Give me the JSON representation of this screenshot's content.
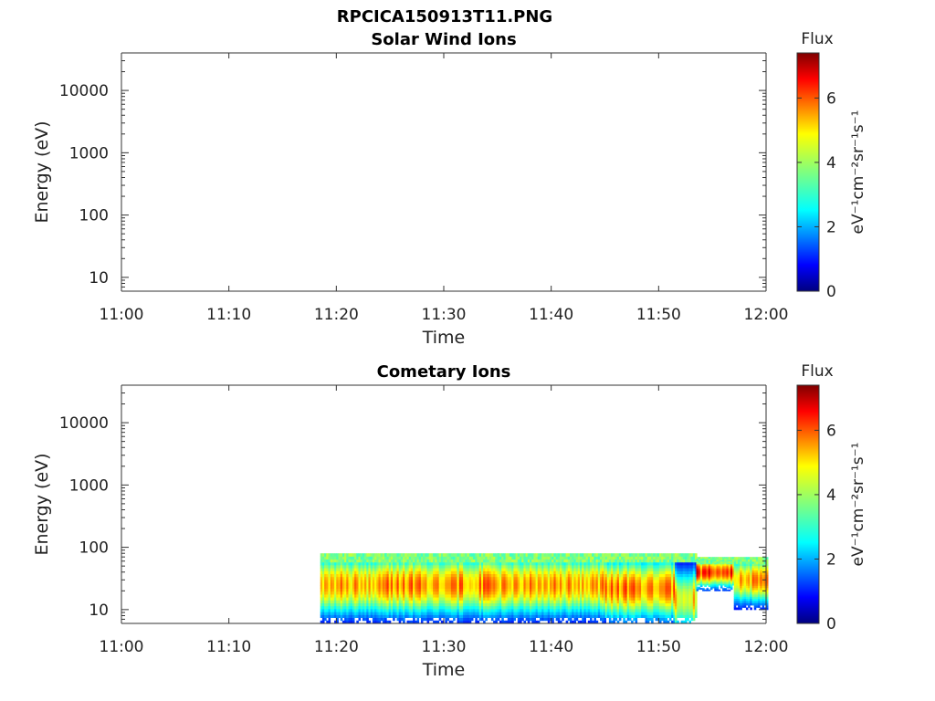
{
  "figure": {
    "title": "RPCICA150913T11.PNG"
  },
  "chart_data": [
    {
      "type": "heatmap",
      "title": "Solar Wind Ions",
      "xlabel": "Time",
      "ylabel": "Energy (eV)",
      "x_ticks": [
        "11:00",
        "11:10",
        "11:20",
        "11:30",
        "11:40",
        "11:50",
        "12:00"
      ],
      "x_range_minutes": [
        0,
        60
      ],
      "y_scale": "log",
      "y_ticks": [
        "10",
        "100",
        "1000",
        "10000"
      ],
      "y_range": [
        6,
        40000
      ],
      "colorbar": {
        "label": "Flux",
        "unit": "eV⁻¹cm⁻²sr⁻¹s⁻¹",
        "ticks": [
          "0",
          "2",
          "4",
          "6"
        ],
        "range": [
          0,
          7.4
        ],
        "colormap": "jet"
      },
      "data_segments": []
    },
    {
      "type": "heatmap",
      "title": "Cometary Ions",
      "xlabel": "Time",
      "ylabel": "Energy (eV)",
      "x_ticks": [
        "11:00",
        "11:10",
        "11:20",
        "11:30",
        "11:40",
        "11:50",
        "12:00"
      ],
      "x_range_minutes": [
        0,
        60
      ],
      "y_scale": "log",
      "y_ticks": [
        "10",
        "100",
        "1000",
        "10000"
      ],
      "y_range": [
        6,
        40000
      ],
      "colorbar": {
        "label": "Flux",
        "unit": "eV⁻¹cm⁻²sr⁻¹s⁻¹",
        "ticks": [
          "0",
          "2",
          "4",
          "6"
        ],
        "range": [
          0,
          7.4
        ],
        "colormap": "jet"
      },
      "data_segments": [
        {
          "t_start": 18.5,
          "t_end": 24.5,
          "e_low": 6,
          "e_high": 80,
          "peak_energy": 25,
          "peak_flux": 6.0
        },
        {
          "t_start": 24.5,
          "t_end": 35.0,
          "e_low": 6,
          "e_high": 80,
          "peak_energy": 25,
          "peak_flux": 6.2
        },
        {
          "t_start": 35.0,
          "t_end": 45.0,
          "e_low": 6,
          "e_high": 80,
          "peak_energy": 25,
          "peak_flux": 6.0
        },
        {
          "t_start": 45.0,
          "t_end": 51.5,
          "e_low": 6,
          "e_high": 80,
          "peak_energy": 22,
          "peak_flux": 6.3
        },
        {
          "t_start": 51.5,
          "t_end": 53.5,
          "e_low": 6,
          "e_high": 80,
          "peak_energy": 15,
          "peak_flux": 5.5
        },
        {
          "t_start": 53.5,
          "t_end": 57.0,
          "e_low": 20,
          "e_high": 70,
          "peak_energy": 40,
          "peak_flux": 7.0
        },
        {
          "t_start": 57.0,
          "t_end": 60.0,
          "e_low": 10,
          "e_high": 70,
          "peak_energy": 30,
          "peak_flux": 6.0
        }
      ]
    }
  ]
}
